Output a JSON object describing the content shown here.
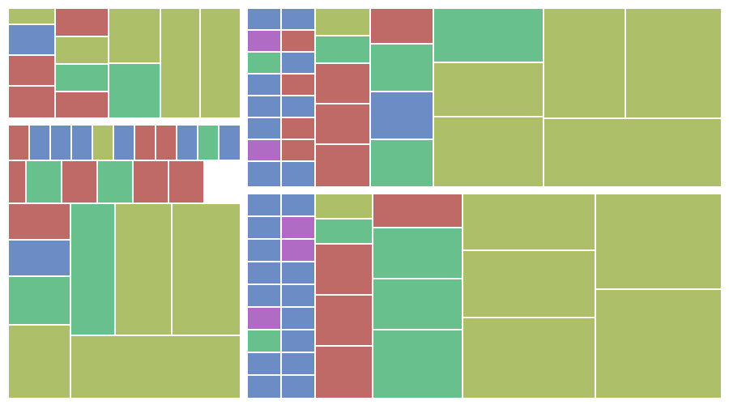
{
  "colors": {
    "olive": "#adbf68",
    "blue": "#6b8cc4",
    "red": "#c06a68",
    "green": "#68c08c",
    "purple": "#b06cc4",
    "background": "#ffffff",
    "separator": "#ffffff"
  },
  "chart_data": {
    "type": "treemap",
    "title": "",
    "legend": "none",
    "groups": [
      {
        "tiles": [
          {
            "color": "olive",
            "value": 3.2
          },
          {
            "color": "blue",
            "value": 6.4
          },
          {
            "color": "red",
            "value": 6.3
          },
          {
            "color": "red",
            "value": 6.6
          },
          {
            "color": "red",
            "value": 6.1
          },
          {
            "color": "olive",
            "value": 6.1
          },
          {
            "color": "green",
            "value": 6.2
          },
          {
            "color": "red",
            "value": 5.5
          },
          {
            "color": "olive",
            "value": 9.6
          },
          {
            "color": "green",
            "value": 9.2
          },
          {
            "color": "olive",
            "value": 7.3
          },
          {
            "color": "olive",
            "value": 7.3
          }
        ]
      },
      {
        "tiles": [
          {
            "color": "red",
            "value": 2.9
          },
          {
            "color": "blue",
            "value": 3.6
          },
          {
            "color": "blue",
            "value": 3.6
          },
          {
            "color": "blue",
            "value": 3.6
          },
          {
            "color": "olive",
            "value": 3.6
          },
          {
            "color": "blue",
            "value": 3.6
          },
          {
            "color": "red",
            "value": 3.6
          },
          {
            "color": "red",
            "value": 3.6
          },
          {
            "color": "blue",
            "value": 3.6
          },
          {
            "color": "green",
            "value": 3.6
          },
          {
            "color": "blue",
            "value": 3.6
          },
          {
            "color": "red",
            "value": 3.0
          },
          {
            "color": "green",
            "value": 6.1
          },
          {
            "color": "red",
            "value": 6.1
          },
          {
            "color": "green",
            "value": 6.1
          },
          {
            "color": "red",
            "value": 6.1
          },
          {
            "color": "red",
            "value": 6.1
          },
          {
            "color": "red",
            "value": 6.1
          },
          {
            "color": "blue",
            "value": 10.8
          },
          {
            "color": "green",
            "value": 11.1
          },
          {
            "color": "green",
            "value": 14.5
          },
          {
            "color": "olive",
            "value": 22.0
          },
          {
            "color": "olive",
            "value": 23.2
          },
          {
            "color": "olive",
            "value": 28.2
          },
          {
            "color": "olive",
            "value": 36.1
          },
          {
            "color": "olive",
            "value": 45.3
          }
        ]
      },
      {
        "tiles": [
          {
            "color": "blue",
            "value": 3.6
          },
          {
            "color": "blue",
            "value": 3.6
          },
          {
            "color": "purple",
            "value": 3.6
          },
          {
            "color": "red",
            "value": 3.6
          },
          {
            "color": "green",
            "value": 3.6
          },
          {
            "color": "blue",
            "value": 3.6
          },
          {
            "color": "blue",
            "value": 3.6
          },
          {
            "color": "red",
            "value": 3.6
          },
          {
            "color": "blue",
            "value": 3.6
          },
          {
            "color": "blue",
            "value": 3.6
          },
          {
            "color": "blue",
            "value": 3.6
          },
          {
            "color": "red",
            "value": 3.6
          },
          {
            "color": "purple",
            "value": 3.6
          },
          {
            "color": "red",
            "value": 3.6
          },
          {
            "color": "blue",
            "value": 3.6
          },
          {
            "color": "blue",
            "value": 3.6
          },
          {
            "color": "olive",
            "value": 8.9
          },
          {
            "color": "green",
            "value": 8.9
          },
          {
            "color": "red",
            "value": 16.9
          },
          {
            "color": "red",
            "value": 16.9
          },
          {
            "color": "red",
            "value": 16.9
          },
          {
            "color": "red",
            "value": 21.6
          },
          {
            "color": "green",
            "value": 23.2
          },
          {
            "color": "blue",
            "value": 23.2
          },
          {
            "color": "green",
            "value": 23.2
          },
          {
            "color": "green",
            "value": 58.5
          },
          {
            "color": "olive",
            "value": 74.4
          },
          {
            "color": "olive",
            "value": 74.4
          },
          {
            "color": "olive",
            "value": 58.8
          },
          {
            "color": "olive",
            "value": 77.3
          },
          {
            "color": "olive",
            "value": 121.6
          },
          {
            "color": "olive",
            "value": 95.3
          }
        ]
      },
      {
        "tiles": [
          {
            "color": "blue",
            "value": 3.6
          },
          {
            "color": "blue",
            "value": 3.6
          },
          {
            "color": "blue",
            "value": 3.6
          },
          {
            "color": "purple",
            "value": 3.6
          },
          {
            "color": "blue",
            "value": 3.6
          },
          {
            "color": "purple",
            "value": 3.6
          },
          {
            "color": "blue",
            "value": 3.6
          },
          {
            "color": "blue",
            "value": 3.6
          },
          {
            "color": "blue",
            "value": 3.6
          },
          {
            "color": "blue",
            "value": 3.6
          },
          {
            "color": "purple",
            "value": 3.6
          },
          {
            "color": "blue",
            "value": 3.6
          },
          {
            "color": "green",
            "value": 3.6
          },
          {
            "color": "blue",
            "value": 3.6
          },
          {
            "color": "blue",
            "value": 3.6
          },
          {
            "color": "blue",
            "value": 3.6
          },
          {
            "color": "blue",
            "value": 3.6
          },
          {
            "color": "blue",
            "value": 3.6
          },
          {
            "color": "olive",
            "value": 9.2
          },
          {
            "color": "green",
            "value": 9.2
          },
          {
            "color": "red",
            "value": 20.0
          },
          {
            "color": "red",
            "value": 20.0
          },
          {
            "color": "red",
            "value": 20.0
          },
          {
            "color": "red",
            "value": 16.5
          },
          {
            "color": "green",
            "value": 23.8
          },
          {
            "color": "green",
            "value": 23.8
          },
          {
            "color": "green",
            "value": 31.2
          },
          {
            "color": "olive",
            "value": 79.1
          },
          {
            "color": "olive",
            "value": 92.7
          },
          {
            "color": "olive",
            "value": 112.2
          },
          {
            "color": "olive",
            "value": 104.4
          },
          {
            "color": "olive",
            "value": 77.3
          }
        ]
      }
    ]
  }
}
